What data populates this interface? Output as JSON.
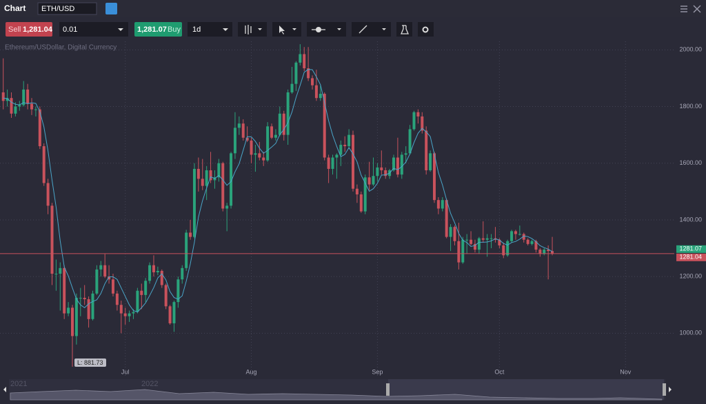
{
  "header": {
    "title": "Chart",
    "symbol": "ETH/USD"
  },
  "toolbar": {
    "sell_label": "Sell",
    "sell_price": "1,281.04",
    "quantity": "0.01",
    "buy_price": "1,281.07",
    "buy_label": "Buy",
    "interval": "1d"
  },
  "navigator": {
    "labels": [
      "2021",
      "2022"
    ]
  },
  "chart_data": {
    "type": "candlestick",
    "subtitle": "Ethereum/USDollar, Digital Currency",
    "up_color": "#2aa37b",
    "down_color": "#c9525c",
    "ma_color": "#4aa6c9",
    "grid": true,
    "xlim": [
      -30.8,
      135
    ],
    "ylim": [
      850,
      2030
    ],
    "xticks": [
      {
        "value": 0,
        "label": "Jul"
      },
      {
        "value": 31,
        "label": "Aug"
      },
      {
        "value": 62,
        "label": "Sep"
      },
      {
        "value": 92,
        "label": "Oct"
      },
      {
        "value": 123,
        "label": "Nov"
      }
    ],
    "yticks": [
      {
        "value": 1000,
        "label": "1000.00"
      },
      {
        "value": 1200,
        "label": "1200.00"
      },
      {
        "value": 1400,
        "label": "1400.00"
      },
      {
        "value": 1600,
        "label": "1600.00"
      },
      {
        "value": 1800,
        "label": "1800.00"
      },
      {
        "value": 2000,
        "label": "2000.00"
      }
    ],
    "ask": 1281.07,
    "bid": 1281.04,
    "low": 881.73,
    "low_label": "L: 881.73",
    "x": [
      -30,
      -29,
      -28,
      -27,
      -26,
      -25,
      -24,
      -23,
      -22,
      -21,
      -20,
      -19,
      -18,
      -17,
      -16,
      -15,
      -14,
      -13,
      -12,
      -11,
      -10,
      -9,
      -8,
      -7,
      -6,
      -5,
      -4,
      -3,
      -2,
      -1,
      0,
      1,
      2,
      3,
      4,
      5,
      6,
      7,
      8,
      9,
      10,
      11,
      12,
      13,
      14,
      15,
      16,
      17,
      18,
      19,
      20,
      21,
      22,
      23,
      24,
      25,
      26,
      27,
      28,
      29,
      30,
      31,
      32,
      33,
      34,
      35,
      36,
      37,
      38,
      39,
      40,
      41,
      42,
      43,
      44,
      45,
      46,
      47,
      48,
      49,
      50,
      51,
      52,
      53,
      54,
      55,
      56,
      57,
      58,
      59,
      60,
      61,
      62,
      63,
      64,
      65,
      66,
      67,
      68,
      69,
      70,
      71,
      72,
      73,
      74,
      75,
      76,
      77,
      78,
      79,
      80,
      81,
      82,
      83,
      84,
      85,
      86,
      87,
      88,
      89,
      90,
      91,
      92,
      93,
      94,
      95,
      96,
      97,
      98,
      99,
      100,
      101,
      102,
      103,
      104,
      105
    ],
    "candles": [
      [
        1850,
        1970,
        1790,
        1820
      ],
      [
        1820,
        1860,
        1800,
        1830
      ],
      [
        1830,
        1850,
        1760,
        1775
      ],
      [
        1775,
        1815,
        1765,
        1800
      ],
      [
        1800,
        1820,
        1785,
        1805
      ],
      [
        1805,
        1890,
        1800,
        1860
      ],
      [
        1860,
        1880,
        1790,
        1810
      ],
      [
        1810,
        1830,
        1770,
        1790
      ],
      [
        1790,
        1800,
        1765,
        1790
      ],
      [
        1790,
        1800,
        1650,
        1660
      ],
      [
        1660,
        1670,
        1520,
        1530
      ],
      [
        1530,
        1545,
        1420,
        1450
      ],
      [
        1450,
        1460,
        1170,
        1210
      ],
      [
        1210,
        1260,
        1150,
        1210
      ],
      [
        1210,
        1250,
        1080,
        1230
      ],
      [
        1230,
        1240,
        1050,
        1070
      ],
      [
        1070,
        1110,
        1060,
        1090
      ],
      [
        1090,
        1100,
        881.73,
        990
      ],
      [
        990,
        1140,
        960,
        1125
      ],
      [
        1125,
        1160,
        1060,
        1125
      ],
      [
        1125,
        1170,
        1100,
        1120
      ],
      [
        1120,
        1130,
        1020,
        1050
      ],
      [
        1050,
        1150,
        1045,
        1140
      ],
      [
        1140,
        1240,
        1135,
        1225
      ],
      [
        1225,
        1255,
        1200,
        1240
      ],
      [
        1240,
        1280,
        1195,
        1200
      ],
      [
        1200,
        1240,
        1175,
        1190
      ],
      [
        1190,
        1210,
        1130,
        1140
      ],
      [
        1140,
        1150,
        1080,
        1100
      ],
      [
        1100,
        1115,
        1000,
        1070
      ],
      [
        1070,
        1090,
        1030,
        1060
      ],
      [
        1060,
        1080,
        1040,
        1070
      ],
      [
        1070,
        1085,
        1050,
        1075
      ],
      [
        1075,
        1160,
        1070,
        1150
      ],
      [
        1150,
        1175,
        1085,
        1135
      ],
      [
        1135,
        1195,
        1110,
        1185
      ],
      [
        1185,
        1250,
        1175,
        1240
      ],
      [
        1240,
        1275,
        1200,
        1215
      ],
      [
        1215,
        1235,
        1205,
        1220
      ],
      [
        1220,
        1225,
        1160,
        1170
      ],
      [
        1170,
        1175,
        1085,
        1095
      ],
      [
        1095,
        1100,
        1030,
        1035
      ],
      [
        1035,
        1115,
        1005,
        1110
      ],
      [
        1110,
        1200,
        1090,
        1190
      ],
      [
        1190,
        1240,
        1175,
        1230
      ],
      [
        1230,
        1365,
        1220,
        1355
      ],
      [
        1355,
        1400,
        1330,
        1340
      ],
      [
        1340,
        1600,
        1335,
        1580
      ],
      [
        1580,
        1620,
        1500,
        1545
      ],
      [
        1545,
        1615,
        1505,
        1520
      ],
      [
        1520,
        1590,
        1470,
        1575
      ],
      [
        1575,
        1640,
        1530,
        1540
      ],
      [
        1540,
        1575,
        1510,
        1550
      ],
      [
        1550,
        1615,
        1535,
        1600
      ],
      [
        1600,
        1605,
        1430,
        1440
      ],
      [
        1440,
        1460,
        1360,
        1450
      ],
      [
        1450,
        1640,
        1440,
        1635
      ],
      [
        1635,
        1780,
        1615,
        1725
      ],
      [
        1725,
        1765,
        1700,
        1740
      ],
      [
        1740,
        1755,
        1680,
        1690
      ],
      [
        1690,
        1730,
        1675,
        1680
      ],
      [
        1680,
        1690,
        1600,
        1630
      ],
      [
        1630,
        1665,
        1570,
        1635
      ],
      [
        1635,
        1675,
        1610,
        1620
      ],
      [
        1620,
        1640,
        1590,
        1610
      ],
      [
        1610,
        1745,
        1605,
        1730
      ],
      [
        1730,
        1740,
        1685,
        1690
      ],
      [
        1690,
        1720,
        1680,
        1700
      ],
      [
        1700,
        1800,
        1695,
        1775
      ],
      [
        1775,
        1785,
        1680,
        1700
      ],
      [
        1700,
        1860,
        1665,
        1850
      ],
      [
        1850,
        1940,
        1845,
        1880
      ],
      [
        1880,
        1960,
        1855,
        1955
      ],
      [
        1955,
        2020,
        1945,
        1985
      ],
      [
        1985,
        2010,
        1925,
        1935
      ],
      [
        1935,
        2010,
        1890,
        1900
      ],
      [
        1900,
        1910,
        1860,
        1875
      ],
      [
        1875,
        1930,
        1820,
        1830
      ],
      [
        1830,
        1875,
        1820,
        1845
      ],
      [
        1845,
        1850,
        1610,
        1620
      ],
      [
        1620,
        1630,
        1530,
        1580
      ],
      [
        1580,
        1630,
        1560,
        1620
      ],
      [
        1620,
        1635,
        1545,
        1630
      ],
      [
        1630,
        1680,
        1590,
        1665
      ],
      [
        1665,
        1695,
        1640,
        1660
      ],
      [
        1660,
        1720,
        1650,
        1700
      ],
      [
        1700,
        1715,
        1500,
        1510
      ],
      [
        1510,
        1525,
        1460,
        1490
      ],
      [
        1490,
        1500,
        1425,
        1430
      ],
      [
        1430,
        1560,
        1420,
        1550
      ],
      [
        1550,
        1605,
        1505,
        1525
      ],
      [
        1525,
        1620,
        1520,
        1555
      ],
      [
        1555,
        1600,
        1535,
        1585
      ],
      [
        1585,
        1645,
        1560,
        1575
      ],
      [
        1575,
        1585,
        1545,
        1555
      ],
      [
        1555,
        1580,
        1545,
        1575
      ],
      [
        1575,
        1630,
        1570,
        1620
      ],
      [
        1620,
        1690,
        1550,
        1560
      ],
      [
        1560,
        1640,
        1545,
        1630
      ],
      [
        1630,
        1660,
        1600,
        1635
      ],
      [
        1635,
        1735,
        1630,
        1720
      ],
      [
        1720,
        1785,
        1715,
        1780
      ],
      [
        1780,
        1790,
        1740,
        1765
      ],
      [
        1765,
        1780,
        1705,
        1715
      ],
      [
        1715,
        1730,
        1560,
        1575
      ],
      [
        1575,
        1645,
        1570,
        1635
      ],
      [
        1635,
        1640,
        1460,
        1470
      ],
      [
        1470,
        1480,
        1420,
        1440
      ],
      [
        1440,
        1480,
        1430,
        1470
      ],
      [
        1470,
        1475,
        1335,
        1340
      ],
      [
        1340,
        1385,
        1290,
        1375
      ],
      [
        1375,
        1380,
        1310,
        1325
      ],
      [
        1325,
        1390,
        1225,
        1250
      ],
      [
        1250,
        1340,
        1245,
        1330
      ],
      [
        1330,
        1350,
        1280,
        1330
      ],
      [
        1330,
        1360,
        1310,
        1315
      ],
      [
        1315,
        1330,
        1285,
        1295
      ],
      [
        1295,
        1340,
        1280,
        1335
      ],
      [
        1335,
        1395,
        1320,
        1330
      ],
      [
        1330,
        1350,
        1270,
        1335
      ],
      [
        1335,
        1350,
        1300,
        1335
      ],
      [
        1335,
        1375,
        1320,
        1330
      ],
      [
        1330,
        1335,
        1300,
        1310
      ],
      [
        1310,
        1320,
        1265,
        1275
      ],
      [
        1275,
        1330,
        1270,
        1325
      ],
      [
        1325,
        1365,
        1320,
        1360
      ],
      [
        1360,
        1365,
        1330,
        1350
      ],
      [
        1350,
        1380,
        1345,
        1350
      ],
      [
        1350,
        1355,
        1320,
        1330
      ],
      [
        1330,
        1335,
        1310,
        1315
      ],
      [
        1315,
        1330,
        1310,
        1325
      ],
      [
        1325,
        1330,
        1285,
        1295
      ],
      [
        1295,
        1300,
        1270,
        1280
      ],
      [
        1280,
        1300,
        1275,
        1295
      ],
      [
        1295,
        1310,
        1190,
        1290
      ],
      [
        1290,
        1340,
        1275,
        1281.04
      ]
    ],
    "ma": [
      1830,
      1828,
      1815,
      1808,
      1806,
      1814,
      1810,
      1813,
      1811,
      1782,
      1728,
      1644,
      1540,
      1445,
      1326,
      1234,
      1202,
      1160,
      1120,
      1100,
      1090,
      1104,
      1112,
      1118,
      1140,
      1175,
      1199,
      1199,
      1190,
      1160,
      1130,
      1100,
      1080,
      1075,
      1090,
      1107,
      1133,
      1161,
      1195,
      1210,
      1188,
      1147,
      1126,
      1120,
      1132,
      1184,
      1245,
      1321,
      1410,
      1468,
      1512,
      1552,
      1546,
      1557,
      1541,
      1522,
      1535,
      1570,
      1598,
      1646,
      1694,
      1693,
      1677,
      1653,
      1635,
      1645,
      1657,
      1670,
      1701,
      1719,
      1743,
      1781,
      1832,
      1875,
      1921,
      1931,
      1930,
      1905,
      1877,
      1814,
      1750,
      1699,
      1659,
      1623,
      1631,
      1655,
      1633,
      1605,
      1558,
      1530,
      1501,
      1510,
      1529,
      1558,
      1559,
      1565,
      1582,
      1577,
      1588,
      1604,
      1633,
      1673,
      1706,
      1723,
      1711,
      1694,
      1632,
      1567,
      1523,
      1471,
      1423,
      1390,
      1352,
      1328,
      1320,
      1306,
      1310,
      1321,
      1321,
      1322,
      1326,
      1333,
      1329,
      1317,
      1311,
      1320,
      1324,
      1332,
      1343,
      1341,
      1334,
      1323,
      1309,
      1302,
      1297,
      1288
    ]
  }
}
